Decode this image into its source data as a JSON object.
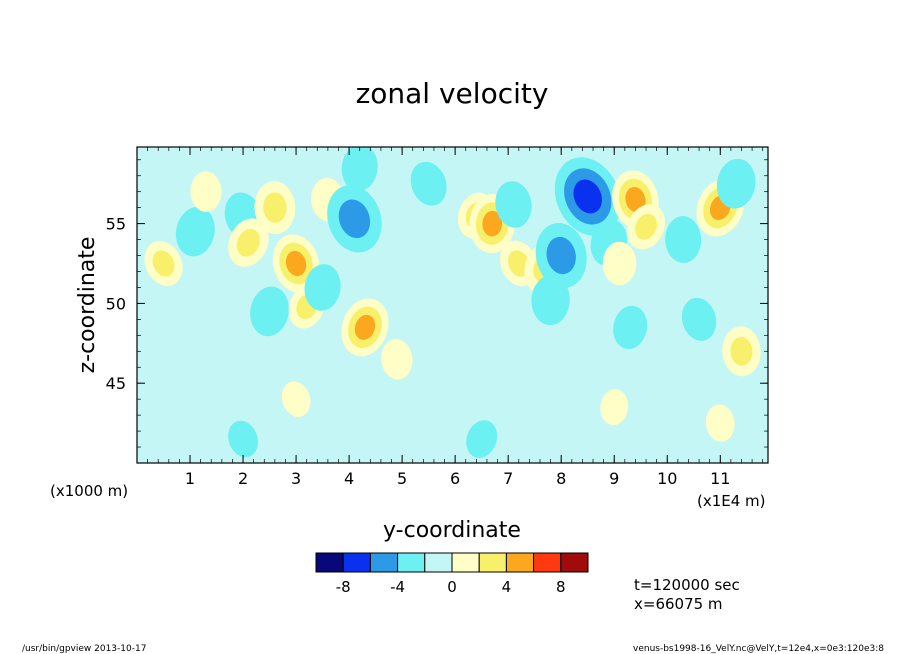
{
  "chart_data": {
    "type": "heatmap",
    "title": "zonal velocity",
    "xlabel": "y-coordinate",
    "ylabel": "z-coordinate",
    "x_unit_label": "(x1E4 m)",
    "y_unit_label": "(x1000 m)",
    "xlim": [
      0,
      11.9
    ],
    "ylim": [
      40,
      59.8
    ],
    "x_ticks": [
      "1",
      "2",
      "3",
      "4",
      "5",
      "6",
      "7",
      "8",
      "9",
      "10",
      "11"
    ],
    "y_ticks": [
      "45",
      "50",
      "55"
    ],
    "legend": {
      "ticks": [
        "-8",
        "-4",
        "0",
        "4",
        "8"
      ],
      "bins": [
        {
          "min": -10,
          "max": -8,
          "color": "#08087a"
        },
        {
          "min": -8,
          "max": -6,
          "color": "#0a32ee"
        },
        {
          "min": -6,
          "max": -4,
          "color": "#2c9ae6"
        },
        {
          "min": -4,
          "max": -2,
          "color": "#6cf0f2"
        },
        {
          "min": -2,
          "max": 0,
          "color": "#c4f6f6"
        },
        {
          "min": 0,
          "max": 2,
          "color": "#fefec6"
        },
        {
          "min": 2,
          "max": 4,
          "color": "#f8f06a"
        },
        {
          "min": 4,
          "max": 6,
          "color": "#fba81e"
        },
        {
          "min": 6,
          "max": 8,
          "color": "#ff3a12"
        },
        {
          "min": 8,
          "max": 10,
          "color": "#a00c0c"
        }
      ]
    },
    "field_features": [
      {
        "x": 0.5,
        "z": 52.5,
        "value": 2.5
      },
      {
        "x": 1.1,
        "z": 54.5,
        "value": -3
      },
      {
        "x": 1.3,
        "z": 57.0,
        "value": 1.5
      },
      {
        "x": 2.0,
        "z": 55.5,
        "value": -2.5
      },
      {
        "x": 2.1,
        "z": 53.8,
        "value": 3
      },
      {
        "x": 2.5,
        "z": 49.5,
        "value": -3
      },
      {
        "x": 2.6,
        "z": 56.0,
        "value": 3.5
      },
      {
        "x": 3.0,
        "z": 52.5,
        "value": 4.5
      },
      {
        "x": 3.2,
        "z": 49.8,
        "value": 2.2
      },
      {
        "x": 3.5,
        "z": 51.0,
        "value": -2.5
      },
      {
        "x": 3.6,
        "z": 56.5,
        "value": 2
      },
      {
        "x": 4.1,
        "z": 55.3,
        "value": -6
      },
      {
        "x": 4.3,
        "z": 48.5,
        "value": 4.5
      },
      {
        "x": 4.2,
        "z": 58.5,
        "value": -2.5
      },
      {
        "x": 4.9,
        "z": 46.5,
        "value": 1.5
      },
      {
        "x": 5.5,
        "z": 57.5,
        "value": -2.2
      },
      {
        "x": 6.4,
        "z": 55.5,
        "value": 2.5
      },
      {
        "x": 6.7,
        "z": 55.0,
        "value": 4.5
      },
      {
        "x": 7.1,
        "z": 56.2,
        "value": -2.5
      },
      {
        "x": 7.2,
        "z": 52.5,
        "value": 2.5
      },
      {
        "x": 7.7,
        "z": 52.2,
        "value": 3.5
      },
      {
        "x": 7.8,
        "z": 50.2,
        "value": -3
      },
      {
        "x": 8.0,
        "z": 53.0,
        "value": -5.5
      },
      {
        "x": 8.5,
        "z": 56.7,
        "value": -8
      },
      {
        "x": 8.9,
        "z": 53.8,
        "value": -2.5
      },
      {
        "x": 9.1,
        "z": 52.5,
        "value": 2
      },
      {
        "x": 9.4,
        "z": 56.5,
        "value": 4.5
      },
      {
        "x": 9.6,
        "z": 54.8,
        "value": 2.5
      },
      {
        "x": 9.3,
        "z": 48.5,
        "value": -2
      },
      {
        "x": 10.3,
        "z": 54.0,
        "value": -2.5
      },
      {
        "x": 10.6,
        "z": 49.0,
        "value": -2
      },
      {
        "x": 11.0,
        "z": 56.0,
        "value": 4.5
      },
      {
        "x": 11.3,
        "z": 57.5,
        "value": -3
      },
      {
        "x": 11.4,
        "z": 47.0,
        "value": 3
      },
      {
        "x": 3.0,
        "z": 44.0,
        "value": 0.8
      },
      {
        "x": 6.5,
        "z": 41.5,
        "value": -1.2
      },
      {
        "x": 9.0,
        "z": 43.5,
        "value": 0.8
      },
      {
        "x": 11.0,
        "z": 42.5,
        "value": 1.0
      },
      {
        "x": 2.0,
        "z": 41.5,
        "value": -1.0
      }
    ]
  },
  "info": {
    "time": "t=120000 sec",
    "position": "x=66075 m"
  },
  "footer": {
    "left": "/usr/bin/gpview  2013-10-17",
    "right": "venus-bs1998-16_VelY.nc@VelY,t=12e4,x=0e3:120e3:8"
  }
}
